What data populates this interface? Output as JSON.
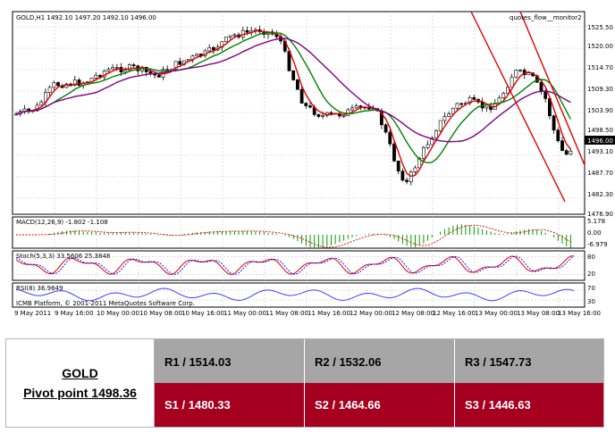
{
  "chart": {
    "symbol_info": "GOLD,H1  1492.10 1497.20 1492.10 1496.00",
    "indicator_name": "quotes_flow__monitor2",
    "price_ticks": [
      "1525.50",
      "1520.00",
      "1514.70",
      "1509.30",
      "1503.90",
      "1498.50",
      "1493.10",
      "1487.70",
      "1482.30",
      "1476.90"
    ],
    "current_price": "1496.00",
    "macd_label": "MACD(12,26,9) -1.802 -1.108",
    "macd_ticks": [
      "5.178",
      "0.00",
      "-6.979"
    ],
    "stoch_label": "Stoch(5,3,3) 33.5606 25.3848",
    "stoch_ticks": [
      "80",
      "20"
    ],
    "rsi_label": "RSI(8) 36.9649",
    "rsi_ticks": [
      "70",
      "30"
    ],
    "copyright": "ICMB Platform, © 2001-2011 MetaQuotes Software Corp.",
    "time_labels": [
      "9 May 2011",
      "9 May 16:00",
      "10 May 00:00",
      "10 May 08:00",
      "10 May 16:00",
      "11 May 00:00",
      "11 May 08:00",
      "11 May 16:00",
      "12 May 00:00",
      "12 May 08:00",
      "12 May 16:00",
      "13 May 00:00",
      "13 May 08:00",
      "13 May 16:00"
    ],
    "colors": {
      "bull_candle": "#ffffff",
      "bear_candle": "#000000",
      "ma_fast": "#e00000",
      "ma_mid": "#008000",
      "ma_slow": "#800080",
      "channel": "#e00000",
      "macd_hist": "#00a000",
      "macd_signal": "#e00000",
      "stoch_main": "#e00000",
      "stoch_signal": "#0000ff",
      "rsi": "#4040ff"
    }
  },
  "table": {
    "symbol": "GOLD",
    "pivot": "Pivot point 1498.36",
    "r1": "R1 / 1514.03",
    "r2": "R2 / 1532.06",
    "r3": "R3 / 1547.73",
    "s1": "S1 / 1480.33",
    "s2": "S2 / 1464.66",
    "s3": "S3 / 1446.63",
    "colors": {
      "resistance_bg": "#a6a6a6",
      "support_bg": "#a5001f"
    }
  }
}
